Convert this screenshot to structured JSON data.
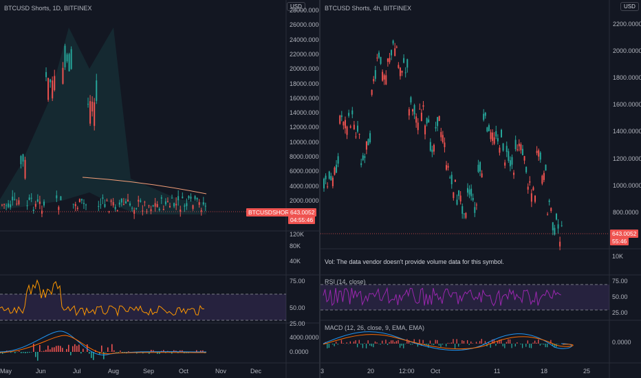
{
  "colors": {
    "background": "#131722",
    "up": "#26a69a",
    "down": "#ef5350",
    "ma": "#f6a07a",
    "bb": "#26a69a",
    "rsi": "#ff9800",
    "rsi_right": "#9c27b0",
    "macd": "#2196f3",
    "signal": "#ff6d00"
  },
  "left": {
    "title": "BTCUSD Shorts, 1D, BITFINEX",
    "currency": "USD",
    "price_axis": [
      "28000.0000",
      "26000.0000",
      "24000.0000",
      "22000.0000",
      "20000.0000",
      "18000.0000",
      "16000.0000",
      "14000.0000",
      "12000.0000",
      "10000.0000",
      "8000.0000",
      "6000.0000",
      "4000.0000",
      "2000.0000"
    ],
    "symbol_tag": "BTCUSDSHORTS",
    "price_tag": "643.0052",
    "countdown_tag": "04:55:46",
    "volume_axis": [
      "120K",
      "80K",
      "40K"
    ],
    "rsi_axis": [
      "75.00",
      "50.00",
      "25.00"
    ],
    "macd_axis": [
      "4000.0000",
      "0.0000"
    ],
    "time_axis": [
      "May",
      "Jun",
      "Jul",
      "Aug",
      "Sep",
      "Oct",
      "Nov",
      "Dec"
    ],
    "icons": [
      "chevron-left-icon"
    ]
  },
  "right": {
    "title": "BTCUSD Shorts, 4h, BITFINEX",
    "currency": "USD",
    "price_axis": [
      "2200.0000",
      "2000.0000",
      "1800.0000",
      "1600.0000",
      "1400.0000",
      "1200.0000",
      "1000.0000",
      "800.0000"
    ],
    "price_tag": "643.0052",
    "countdown_tag": "55:46",
    "volume_note": "Vol: The data vendor doesn't provide volume data for this symbol.",
    "volume_axis": [
      "10K"
    ],
    "rsi_title": "RSI (14, close)",
    "rsi_axis": [
      "75.00",
      "50.00",
      "25.00"
    ],
    "macd_title": "MACD (12, 26, close, 9, EMA, EMA)",
    "macd_axis": [
      "0.0000"
    ],
    "time_axis": [
      "3",
      "20",
      "12:00",
      "Oct",
      "11",
      "18",
      "25"
    ]
  }
}
